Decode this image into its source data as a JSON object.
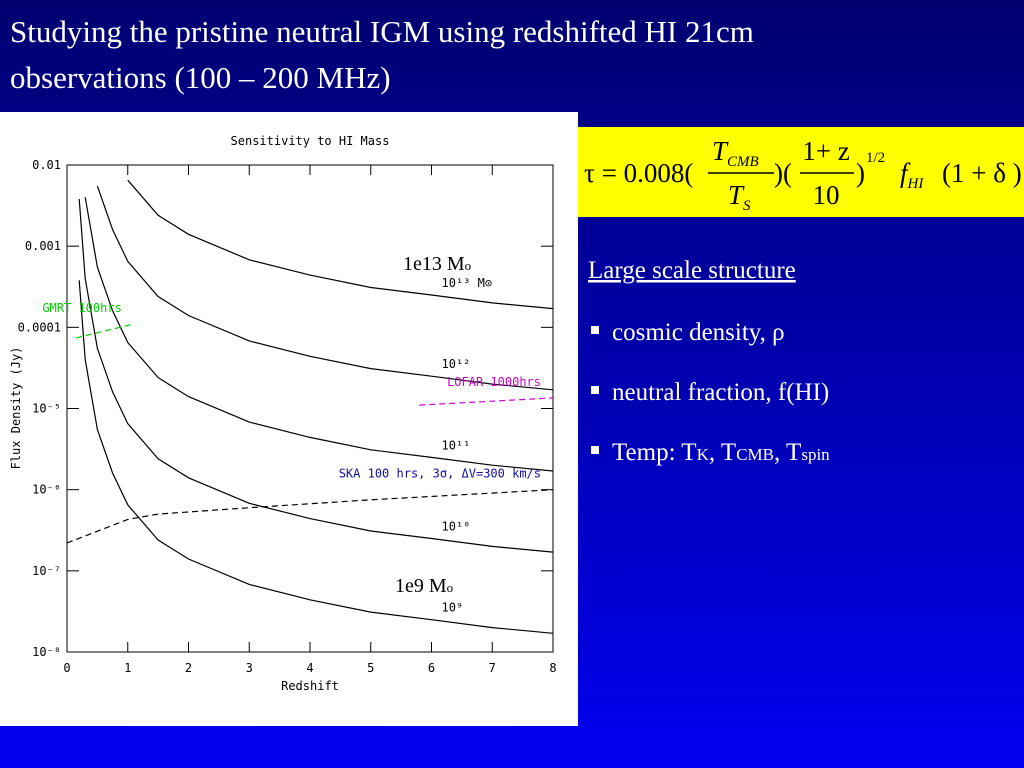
{
  "slide": {
    "title_lines": [
      "Studying the pristine neutral IGM using redshifted  HI 21cm",
      "observations (100 – 200 MHz)"
    ],
    "overlay_labels": [
      {
        "text": "1e13 M",
        "sub": "o"
      },
      {
        "text": "1e9 M",
        "sub": "o"
      }
    ],
    "equation": {
      "lead": "τ = 0.008(",
      "num1": "T",
      "num1_sub": "CMB",
      "den1": "T",
      "den1_sub": "S",
      "mid": ")(",
      "num2": "1+ z",
      "den2": "10",
      "close": ")",
      "power": "1/2",
      "f": "f",
      "f_sub": "HI",
      "tail": "(1 + δ )"
    },
    "heading": "Large scale structure",
    "bullets": [
      [
        "cosmic density, ρ"
      ],
      [
        "neutral fraction, f(HI)"
      ],
      [
        "Temp: T",
        "K",
        ", T",
        "CMB",
        ", T",
        "spin"
      ]
    ]
  },
  "chart_data": {
    "type": "line",
    "title": "Sensitivity to HI Mass",
    "xlabel": "Redshift",
    "ylabel": "Flux Density (Jy)",
    "log_y": true,
    "xlim": [
      0,
      8
    ],
    "xticks": [
      0,
      1,
      2,
      3,
      4,
      5,
      6,
      7,
      8
    ],
    "ylim": [
      1e-08,
      0.01
    ],
    "yticks": [
      0.01,
      0.001,
      0.0001,
      {
        "value": 1e-05,
        "label": "10⁻⁵"
      },
      {
        "value": 1e-06,
        "label": "10⁻⁶"
      },
      {
        "value": 1e-07,
        "label": "10⁻⁷"
      },
      {
        "value": 1e-08,
        "label": "10⁻⁸"
      }
    ],
    "x": [
      0.2,
      0.3,
      0.5,
      0.75,
      1,
      1.5,
      2,
      3,
      4,
      5,
      6,
      7,
      8
    ],
    "series": [
      {
        "name": "10¹³ M⊙",
        "color": "#000000",
        "values": [
          null,
          null,
          null,
          null,
          0.0065,
          0.0024,
          0.0014,
          0.00068,
          0.00044,
          0.00031,
          0.00025,
          0.0002,
          0.00017
        ]
      },
      {
        "name": "10¹²",
        "color": "#000000",
        "values": [
          null,
          null,
          0.0055,
          0.0016,
          0.00065,
          0.00024,
          0.00014,
          6.8e-05,
          4.4e-05,
          3.1e-05,
          2.5e-05,
          2e-05,
          1.7e-05
        ]
      },
      {
        "name": "10¹¹",
        "color": "#000000",
        "values": [
          null,
          0.004,
          0.00055,
          0.00016,
          6.5e-05,
          2.4e-05,
          1.4e-05,
          6.8e-06,
          4.4e-06,
          3.1e-06,
          2.5e-06,
          2e-06,
          1.7e-06
        ]
      },
      {
        "name": "10¹⁰",
        "color": "#000000",
        "values": [
          0.0038,
          0.0004,
          5.5e-05,
          1.6e-05,
          6.5e-06,
          2.4e-06,
          1.4e-06,
          6.8e-07,
          4.4e-07,
          3.1e-07,
          2.5e-07,
          2e-07,
          1.7e-07
        ]
      },
      {
        "name": "10⁹",
        "color": "#000000",
        "values": [
          0.00038,
          4e-05,
          5.5e-06,
          1.6e-06,
          6.5e-07,
          2.4e-07,
          1.4e-07,
          6.8e-08,
          4.4e-08,
          3.1e-08,
          2.5e-08,
          2e-08,
          1.7e-08
        ]
      }
    ],
    "sensitivity": [
      {
        "name": "GMRT 100hrs",
        "color": "#00cc00",
        "x": [
          0.15,
          1.1
        ],
        "values": [
          7.4e-05,
          0.00011
        ]
      },
      {
        "name": "LOFAR 1000hrs",
        "color": "#cc00cc",
        "x": [
          5.8,
          8
        ],
        "values": [
          1.1e-05,
          1.35e-05
        ]
      },
      {
        "name": "SKA 100 hrs, 3σ, ΔV=300 km/s",
        "color": "#000000",
        "label_color": "#1010a0",
        "x": [
          0,
          1,
          1.5,
          3,
          5,
          8
        ],
        "values": [
          2.2e-07,
          4.3e-07,
          5e-07,
          6e-07,
          7.5e-07,
          1e-06
        ]
      }
    ]
  }
}
